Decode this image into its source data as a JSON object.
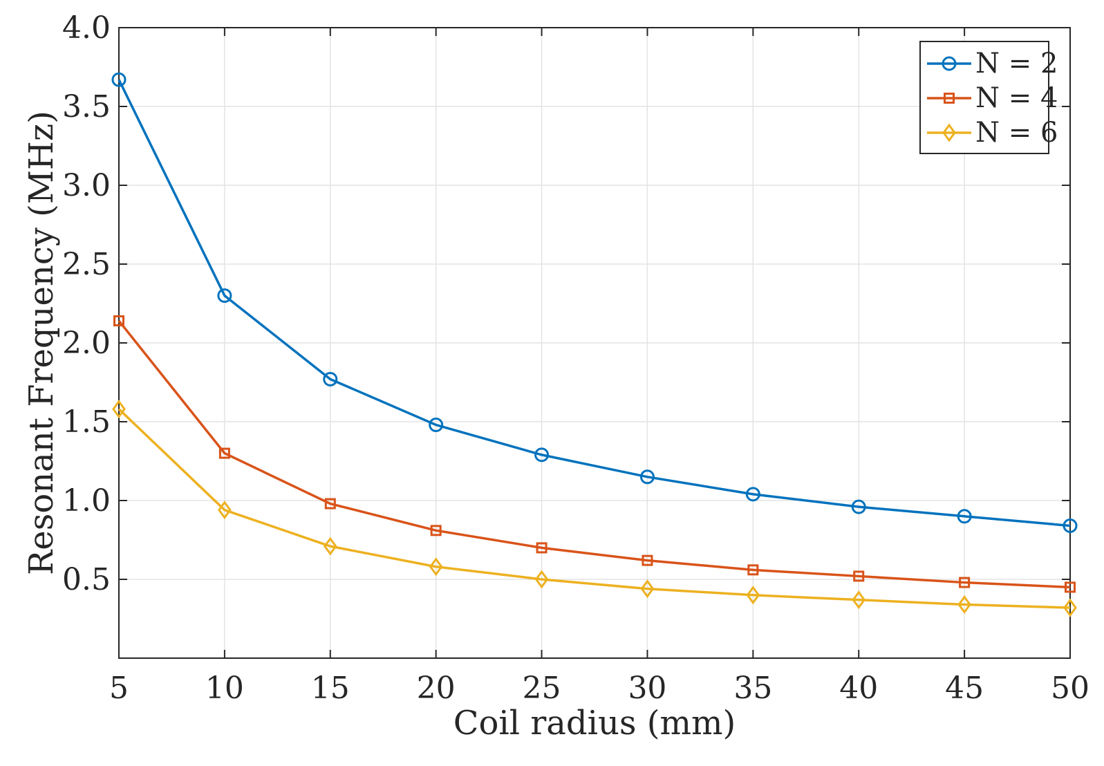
{
  "chart_data": {
    "type": "line",
    "title": "",
    "xlabel": "Coil radius (mm)",
    "ylabel": "Resonant Frequency (MHz)",
    "x": [
      5,
      10,
      15,
      20,
      25,
      30,
      35,
      40,
      45,
      50
    ],
    "xlim": [
      5,
      50
    ],
    "ylim": [
      0,
      4.0
    ],
    "xticks": [
      5,
      10,
      15,
      20,
      25,
      30,
      35,
      40,
      45,
      50
    ],
    "xtick_labels": [
      "5",
      "10",
      "15",
      "20",
      "25",
      "30",
      "35",
      "40",
      "45",
      "50"
    ],
    "yticks": [
      0.5,
      1.0,
      1.5,
      2.0,
      2.5,
      3.0,
      3.5,
      4.0
    ],
    "ytick_labels": [
      "0.5",
      "1.0",
      "1.5",
      "2.0",
      "2.5",
      "3.0",
      "3.5",
      "4.0"
    ],
    "grid": true,
    "legend_position": "top-right",
    "series": [
      {
        "name": "N = 2",
        "color": "#0072BD",
        "marker": "circle",
        "values": [
          3.67,
          2.3,
          1.77,
          1.48,
          1.29,
          1.15,
          1.04,
          0.96,
          0.9,
          0.84
        ]
      },
      {
        "name": "N = 4",
        "color": "#D95319",
        "marker": "square",
        "values": [
          2.14,
          1.3,
          0.98,
          0.81,
          0.7,
          0.62,
          0.56,
          0.52,
          0.48,
          0.45
        ]
      },
      {
        "name": "N = 6",
        "color": "#EDB120",
        "marker": "diamond",
        "values": [
          1.58,
          0.94,
          0.71,
          0.58,
          0.5,
          0.44,
          0.4,
          0.37,
          0.34,
          0.32
        ]
      }
    ]
  }
}
